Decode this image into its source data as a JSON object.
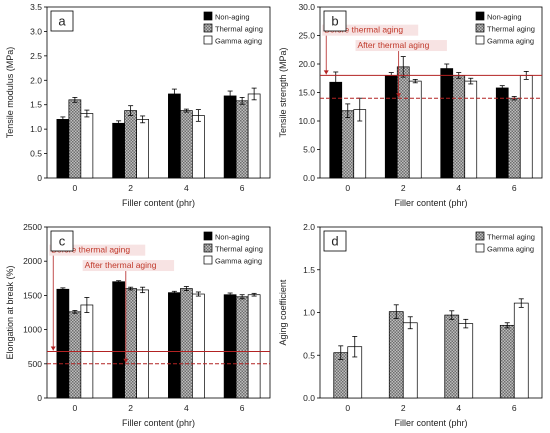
{
  "colors": {
    "non_aging": "#000000",
    "thermal_aging": "#8c8c8c",
    "gamma_aging": "#ffffff",
    "reference_line": "#b22222",
    "annotation_bg": "#f6dede"
  },
  "chart_data": [
    {
      "panel": "a",
      "type": "bar",
      "categories": [
        "0",
        "2",
        "4",
        "6"
      ],
      "xlabel": "Filler content (phr)",
      "ylabel": "Tensile modulus (MPa)",
      "ylim": [
        0,
        3.5
      ],
      "yticks": [
        0,
        0.5,
        1.0,
        1.5,
        2.0,
        2.5,
        3.0,
        3.5
      ],
      "ytick_labels": [
        "0",
        "0.5",
        "1.0",
        "1.5",
        "2.0",
        "2.5",
        "3.0",
        "3.5"
      ],
      "legend_position": "top-right",
      "series": [
        {
          "name": "Non-aging",
          "key": "non_aging",
          "values": [
            1.2,
            1.12,
            1.72,
            1.68
          ],
          "errors": [
            0.05,
            0.05,
            0.1,
            0.1
          ]
        },
        {
          "name": "Thermal aging",
          "key": "thermal_aging",
          "values": [
            1.6,
            1.38,
            1.38,
            1.58
          ],
          "errors": [
            0.05,
            0.1,
            0.03,
            0.07
          ]
        },
        {
          "name": "Gamma aging",
          "key": "gamma_aging",
          "values": [
            1.32,
            1.2,
            1.28,
            1.72
          ],
          "errors": [
            0.07,
            0.07,
            0.12,
            0.12
          ]
        }
      ],
      "reference_lines": [],
      "annotations": []
    },
    {
      "panel": "b",
      "type": "bar",
      "categories": [
        "0",
        "2",
        "4",
        "6"
      ],
      "xlabel": "Filler content (phr)",
      "ylabel": "Tensile strength (MPa)",
      "ylim": [
        0,
        30
      ],
      "yticks": [
        0,
        5,
        10,
        15,
        20,
        25,
        30
      ],
      "ytick_labels": [
        "0.0",
        "5.0",
        "10.0",
        "15.0",
        "20.0",
        "25.0",
        "30.0"
      ],
      "legend_position": "top-right",
      "series": [
        {
          "name": "Non-aging",
          "key": "non_aging",
          "values": [
            16.8,
            18.0,
            19.2,
            15.8
          ],
          "errors": [
            1.8,
            0.5,
            0.8,
            0.4
          ]
        },
        {
          "name": "Thermal aging",
          "key": "thermal_aging",
          "values": [
            11.8,
            19.5,
            18.0,
            14.0
          ],
          "errors": [
            1.2,
            1.8,
            0.5,
            0.3
          ]
        },
        {
          "name": "Gamma aging",
          "key": "gamma_aging",
          "values": [
            12.0,
            17.0,
            17.0,
            18.0
          ],
          "errors": [
            2.0,
            0.3,
            0.5,
            0.7
          ]
        }
      ],
      "reference_lines": [
        {
          "value": 18.0,
          "style": "solid"
        },
        {
          "value": 14.0,
          "style": "dashed"
        }
      ],
      "annotations": [
        {
          "text": "Before thermal aging",
          "pos": "upper-left"
        },
        {
          "text": "After thermal aging",
          "pos": "upper-mid"
        }
      ]
    },
    {
      "panel": "c",
      "type": "bar",
      "categories": [
        "0",
        "2",
        "4",
        "6"
      ],
      "xlabel": "Filler content (phr)",
      "ylabel": "Elongation at break (%)",
      "ylim": [
        0,
        2500
      ],
      "yticks": [
        0,
        500,
        1000,
        1500,
        2000,
        2500
      ],
      "ytick_labels": [
        "0",
        "500",
        "1000",
        "1500",
        "2000",
        "2500"
      ],
      "legend_position": "top-right",
      "series": [
        {
          "name": "Non-aging",
          "key": "non_aging",
          "values": [
            1590,
            1700,
            1540,
            1510
          ],
          "errors": [
            20,
            15,
            20,
            25
          ]
        },
        {
          "name": "Thermal aging",
          "key": "thermal_aging",
          "values": [
            1260,
            1600,
            1600,
            1480
          ],
          "errors": [
            20,
            20,
            30,
            30
          ]
        },
        {
          "name": "Gamma aging",
          "key": "gamma_aging",
          "values": [
            1360,
            1580,
            1520,
            1510
          ],
          "errors": [
            110,
            40,
            30,
            20
          ]
        }
      ],
      "reference_lines": [
        {
          "value": 680,
          "style": "solid"
        },
        {
          "value": 500,
          "style": "dashed"
        }
      ],
      "annotations": [
        {
          "text": "Before thermal aging",
          "pos": "upper-left"
        },
        {
          "text": "After thermal aging",
          "pos": "upper-mid"
        }
      ]
    },
    {
      "panel": "d",
      "type": "bar",
      "categories": [
        "0",
        "2",
        "4",
        "6"
      ],
      "xlabel": "Filler content (phr)",
      "ylabel": "Aging coefficient",
      "ylim": [
        0,
        2.0
      ],
      "yticks": [
        0,
        0.5,
        1.0,
        1.5,
        2.0
      ],
      "ytick_labels": [
        "0.0",
        "0.5",
        "1.0",
        "1.5",
        "2.0"
      ],
      "legend_position": "top-right",
      "series": [
        {
          "name": "Thermal aging",
          "key": "thermal_aging",
          "values": [
            0.53,
            1.01,
            0.97,
            0.85
          ],
          "errors": [
            0.08,
            0.08,
            0.05,
            0.03
          ]
        },
        {
          "name": "Gamma aging",
          "key": "gamma_aging",
          "values": [
            0.6,
            0.88,
            0.87,
            1.11
          ],
          "errors": [
            0.12,
            0.07,
            0.05,
            0.05
          ]
        }
      ],
      "reference_lines": [],
      "annotations": []
    }
  ]
}
